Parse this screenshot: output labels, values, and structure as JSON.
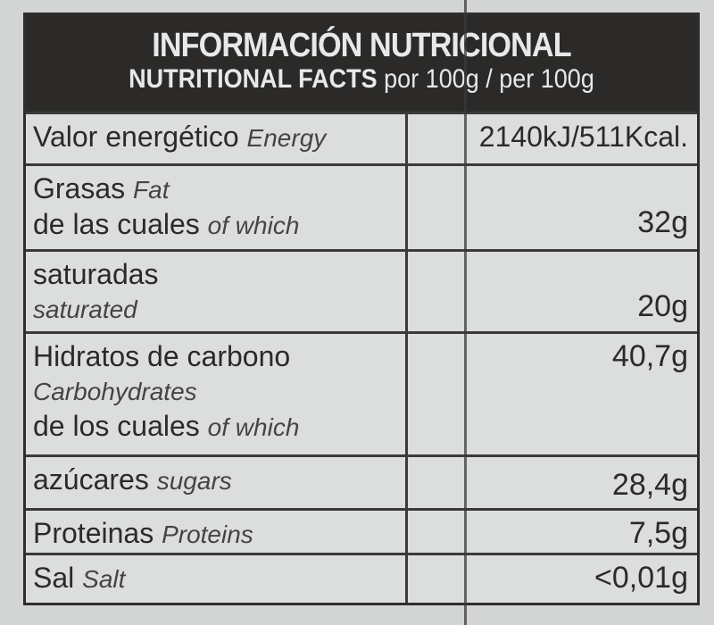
{
  "header": {
    "title": "INFORMACIÓN NUTRICIONAL",
    "subtitle_bold": "NUTRITIONAL FACTS",
    "subtitle_rest": "por 100g / per 100g"
  },
  "rows": [
    {
      "es": "Valor energético",
      "en": "Energy",
      "value": "2140kJ/511Kcal."
    },
    {
      "es": "Grasas",
      "en": "Fat",
      "es2": "de las cuales",
      "en2": "of which",
      "value": "32g"
    },
    {
      "es": "saturadas",
      "en": "saturated",
      "value": "20g"
    },
    {
      "es": "Hidratos de carbono",
      "en": "Carbohydrates",
      "es2": "de los cuales",
      "en2": "of which",
      "value": "40,7g"
    },
    {
      "es": "azúcares",
      "en": "sugars",
      "value": "28,4g"
    },
    {
      "es": "Proteinas",
      "en": "Proteins",
      "value": "7,5g"
    },
    {
      "es": "Sal",
      "en": "Salt",
      "value": "<0,01g"
    }
  ]
}
